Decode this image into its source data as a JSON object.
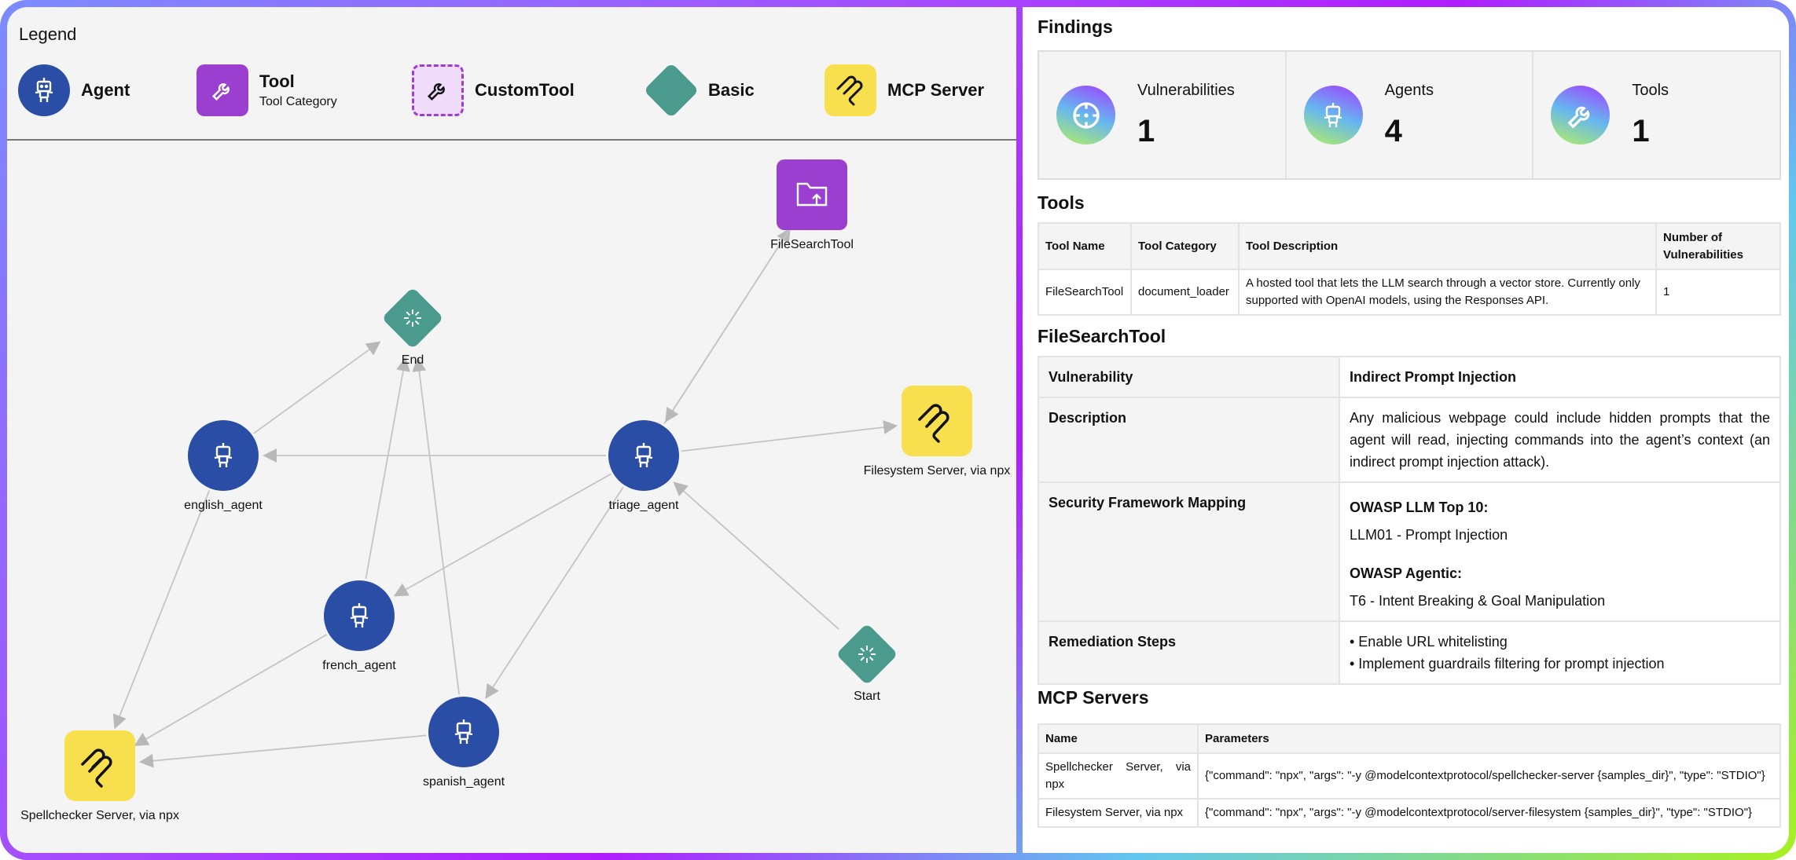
{
  "legend": {
    "title": "Legend",
    "items": [
      {
        "type": "agent",
        "label": "Agent",
        "color": "#2a4ea6",
        "icon": "robot-icon"
      },
      {
        "type": "tool",
        "label": "Tool",
        "sub": "Tool Category",
        "color": "#9a3fcf",
        "icon": "wrench-icon"
      },
      {
        "type": "custom",
        "label": "CustomTool",
        "color": "#f1ddfb",
        "icon": "wrench-icon"
      },
      {
        "type": "basic",
        "label": "Basic",
        "color": "#4a9a8e",
        "icon": "spinner-icon"
      },
      {
        "type": "mcp",
        "label": "MCP Server",
        "color": "#f8df4d",
        "icon": "mcp-icon"
      }
    ]
  },
  "graph": {
    "nodes": [
      {
        "id": "FileSearchTool",
        "type": "tool",
        "label": "FileSearchTool"
      },
      {
        "id": "End",
        "type": "basic",
        "label": "End"
      },
      {
        "id": "Filesystem",
        "type": "mcp",
        "label": "Filesystem Server, via npx"
      },
      {
        "id": "english_agent",
        "type": "agent",
        "label": "english_agent"
      },
      {
        "id": "triage_agent",
        "type": "agent",
        "label": "triage_agent"
      },
      {
        "id": "french_agent",
        "type": "agent",
        "label": "french_agent"
      },
      {
        "id": "Start",
        "type": "basic",
        "label": "Start"
      },
      {
        "id": "spanish_agent",
        "type": "agent",
        "label": "spanish_agent"
      },
      {
        "id": "Spellchecker",
        "type": "mcp",
        "label": "Spellchecker Server, via npx"
      }
    ],
    "edges": [
      [
        "english_agent",
        "End"
      ],
      [
        "french_agent",
        "End"
      ],
      [
        "spanish_agent",
        "End"
      ],
      [
        "triage_agent",
        "FileSearchTool"
      ],
      [
        "FileSearchTool",
        "triage_agent"
      ],
      [
        "triage_agent",
        "english_agent"
      ],
      [
        "triage_agent",
        "Filesystem"
      ],
      [
        "triage_agent",
        "french_agent"
      ],
      [
        "triage_agent",
        "spanish_agent"
      ],
      [
        "Start",
        "triage_agent"
      ],
      [
        "english_agent",
        "Spellchecker"
      ],
      [
        "french_agent",
        "Spellchecker"
      ],
      [
        "spanish_agent",
        "Spellchecker"
      ]
    ]
  },
  "findings": {
    "title": "Findings",
    "cards": [
      {
        "label": "Vulnerabilities",
        "value": "1",
        "icon": "crosshair-icon"
      },
      {
        "label": "Agents",
        "value": "4",
        "icon": "robot-icon"
      },
      {
        "label": "Tools",
        "value": "1",
        "icon": "wrench-icon"
      }
    ]
  },
  "tools": {
    "title": "Tools",
    "headers": [
      "Tool Name",
      "Tool Category",
      "Tool Description",
      "Number of Vulnerabilities"
    ],
    "rows": [
      [
        "FileSearchTool",
        "document_loader",
        "A hosted tool that lets the LLM search through a vector store. Currently only supported with OpenAI models, using the Responses API.",
        "1"
      ]
    ]
  },
  "vuln": {
    "title": "FileSearchTool",
    "vulnerability_label": "Vulnerability",
    "vulnerability": "Indirect Prompt Injection",
    "description_label": "Description",
    "description": "Any malicious webpage could include hidden prompts that the agent will read, injecting commands into the agent’s context (an indirect prompt injection attack).",
    "mapping_label": "Security Framework Mapping",
    "owasp_llm_label": "OWASP LLM Top 10:",
    "owasp_llm": "LLM01 - Prompt Injection",
    "owasp_agentic_label": "OWASP Agentic:",
    "owasp_agentic": "T6 - Intent Breaking & Goal Manipulation",
    "remediation_label": "Remediation Steps",
    "remediation": [
      "• Enable URL whitelisting",
      "• Implement guardrails filtering for prompt injection"
    ]
  },
  "mcp": {
    "title": "MCP Servers",
    "headers": [
      "Name",
      "Parameters"
    ],
    "rows": [
      [
        "Spellchecker Server, via npx",
        "{\"command\": \"npx\", \"args\": \"-y @modelcontextprotocol/spellchecker-server {samples_dir}\", \"type\": \"STDIO\"}"
      ],
      [
        "Filesystem Server, via npx",
        "{\"command\": \"npx\", \"args\": \"-y @modelcontextprotocol/server-filesystem {samples_dir}\", \"type\": \"STDIO\"}"
      ]
    ]
  }
}
